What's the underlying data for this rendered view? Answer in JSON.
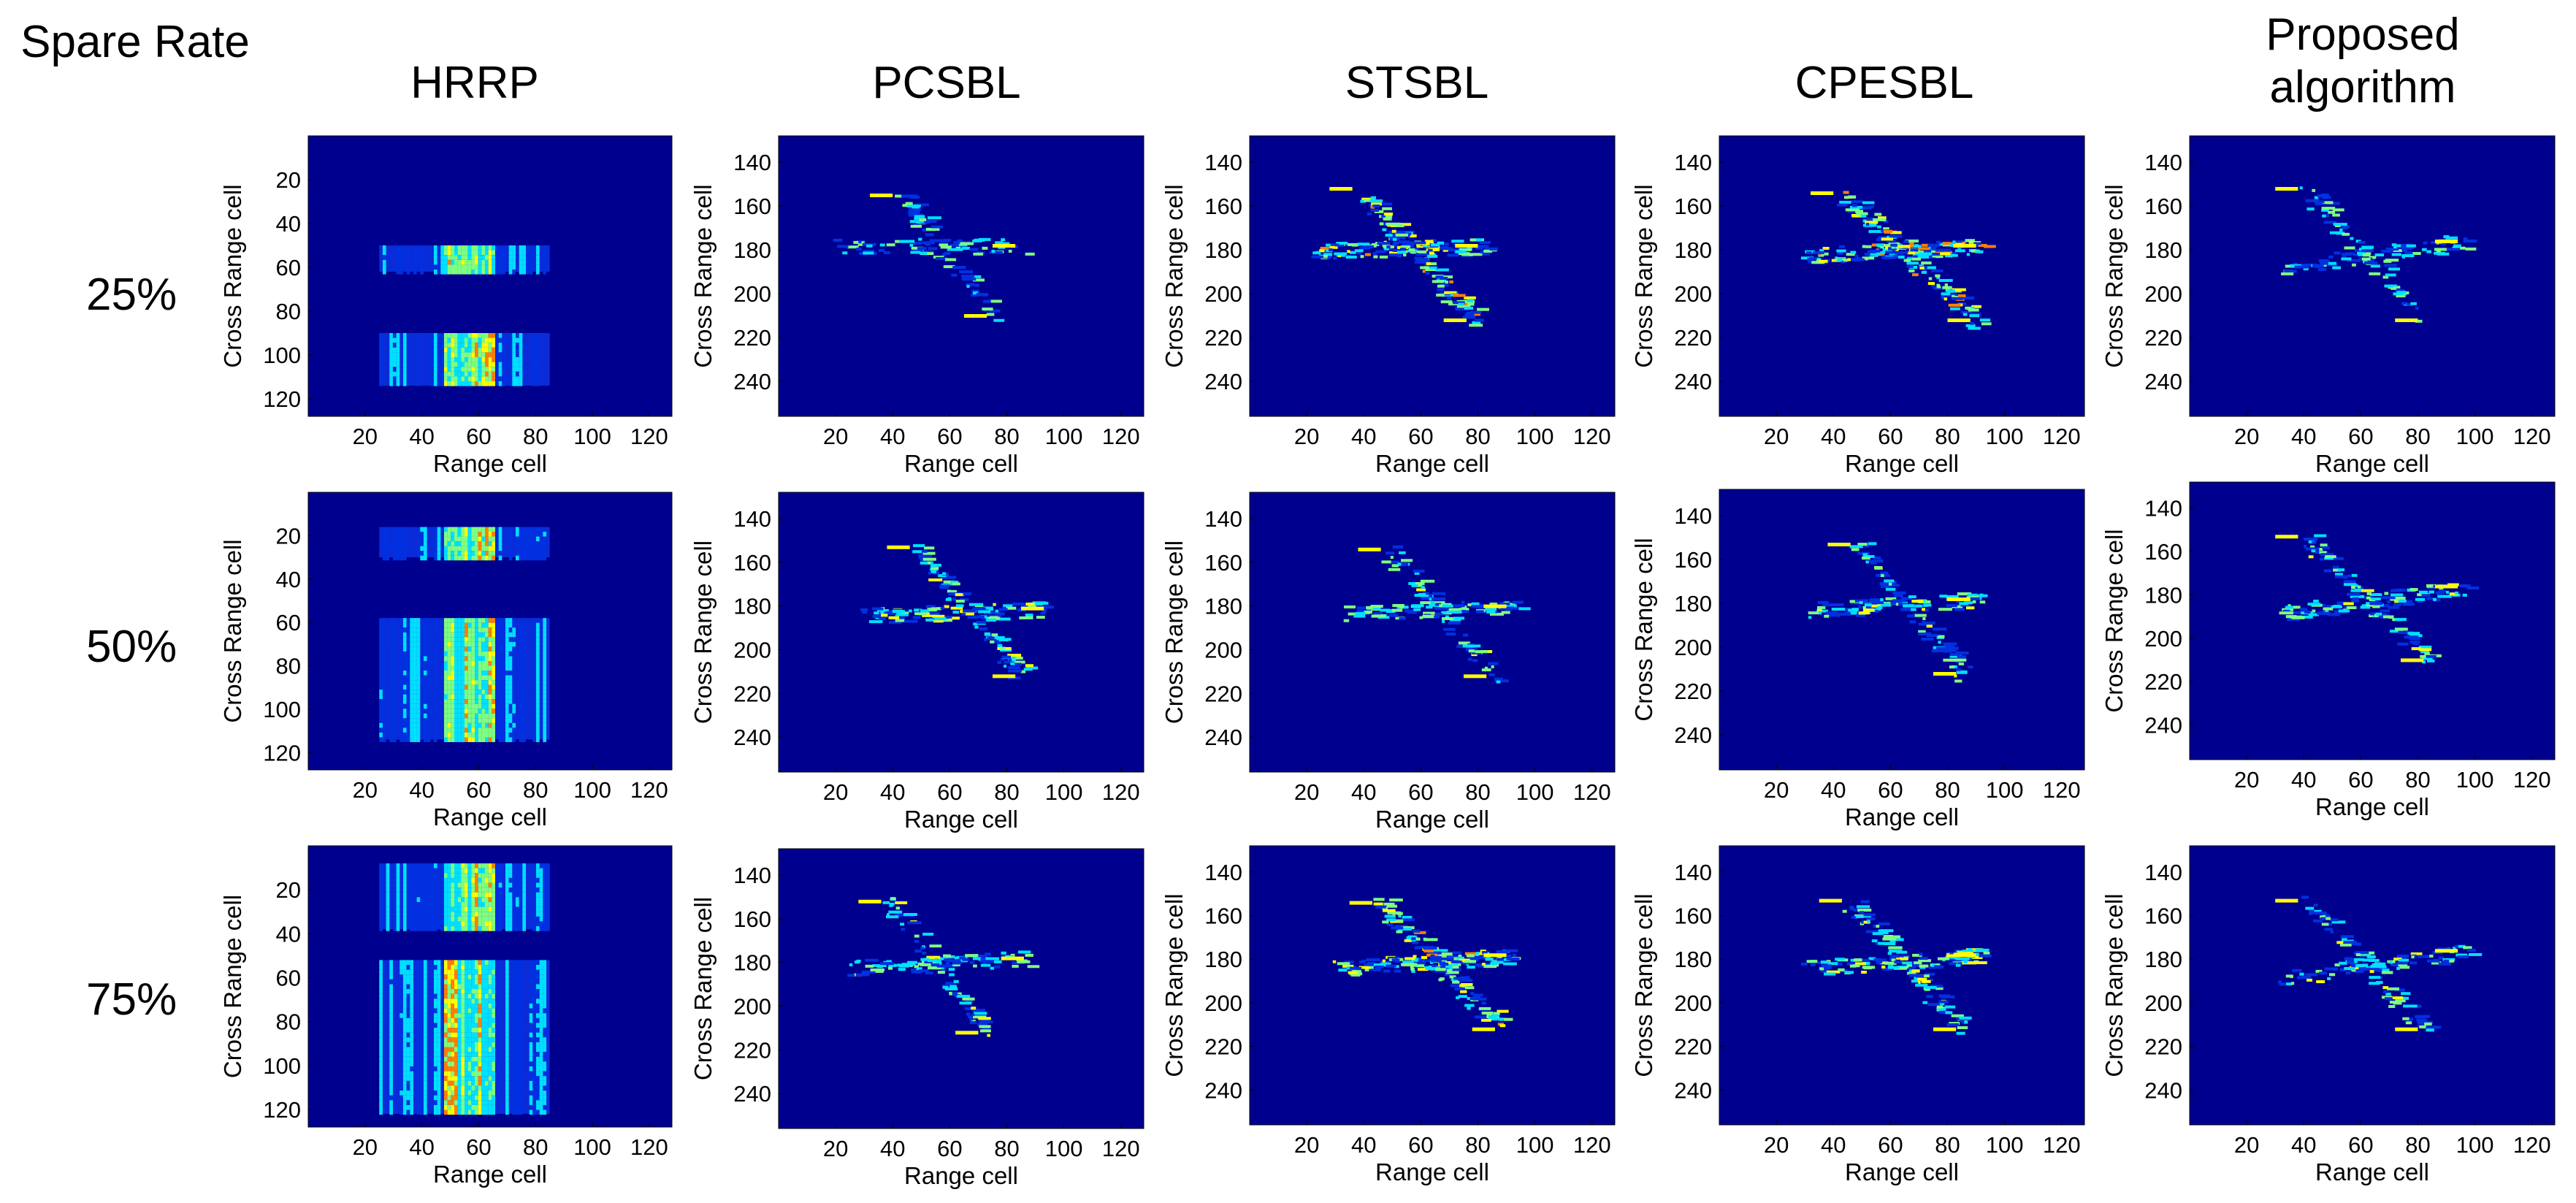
{
  "header": {
    "row_label_title": "Spare Rate",
    "columns": [
      "HRRP",
      "PCSBL",
      "STSBL",
      "CPESBL",
      "Proposed\nalgorithm"
    ]
  },
  "rows": [
    "25%",
    "50%",
    "75%"
  ],
  "colors": {
    "background": "#00008f",
    "low": "#0030e0",
    "mid": "#00e0ff",
    "high": "#ffff00",
    "peak": "#ff8000"
  },
  "chart_data": [
    {
      "type": "heatmap",
      "panel": "HRRP 25%",
      "title": "HRRP",
      "xlabel": "Range cell",
      "ylabel": "Cross Range cell",
      "xticks": [
        20,
        40,
        60,
        80,
        100,
        120
      ],
      "yticks": [
        20,
        40,
        60,
        80,
        100,
        120
      ],
      "xlim": [
        0,
        128
      ],
      "ylim": [
        128,
        0
      ],
      "bands": [
        [
          50,
          62
        ],
        [
          90,
          114
        ]
      ],
      "x_extent": [
        25,
        85
      ],
      "hot_x": [
        47,
        65
      ]
    },
    {
      "type": "heatmap",
      "panel": "PCSBL 25%",
      "title": "PCSBL",
      "xlabel": "Range cell",
      "ylabel": "Cross Range cell",
      "xticks": [
        20,
        40,
        60,
        80,
        100,
        120
      ],
      "yticks": [
        140,
        160,
        180,
        200,
        220,
        240
      ],
      "xlim": [
        0,
        128
      ],
      "ylim": [
        256,
        128
      ],
      "target": {
        "nose": [
          85,
          178
        ],
        "tail": [
          22,
          178
        ],
        "wing_tip_upper": [
          42,
          155
        ],
        "wing_tip_lower": [
          75,
          210
        ],
        "density": 0.5
      }
    },
    {
      "type": "heatmap",
      "panel": "STSBL 25%",
      "title": "STSBL",
      "xlabel": "Range cell",
      "ylabel": "Cross Range cell",
      "xticks": [
        20,
        40,
        60,
        80,
        100,
        120
      ],
      "yticks": [
        140,
        160,
        180,
        200,
        220,
        240
      ],
      "xlim": [
        0,
        128
      ],
      "ylim": [
        256,
        128
      ],
      "target": {
        "nose": [
          82,
          178
        ],
        "tail": [
          22,
          180
        ],
        "wing_tip_upper": [
          38,
          152
        ],
        "wing_tip_lower": [
          78,
          212
        ],
        "density": 0.9
      }
    },
    {
      "type": "heatmap",
      "panel": "CPESBL 25%",
      "title": "CPESBL",
      "xlabel": "Range cell",
      "ylabel": "Cross Range cell",
      "xticks": [
        20,
        40,
        60,
        80,
        100,
        120
      ],
      "yticks": [
        140,
        160,
        180,
        200,
        220,
        240
      ],
      "xlim": [
        0,
        128
      ],
      "ylim": [
        256,
        128
      ],
      "target": {
        "nose": [
          92,
          178
        ],
        "tail": [
          30,
          182
        ],
        "wing_tip_upper": [
          42,
          154
        ],
        "wing_tip_lower": [
          90,
          212
        ],
        "density": 1.0
      }
    },
    {
      "type": "heatmap",
      "panel": "Proposed algorithm 25%",
      "title": "Proposed algorithm",
      "xlabel": "Range cell",
      "ylabel": "Cross Range cell",
      "xticks": [
        20,
        40,
        60,
        80,
        100,
        120
      ],
      "yticks": [
        140,
        160,
        180,
        200,
        220,
        240
      ],
      "xlim": [
        0,
        128
      ],
      "ylim": [
        256,
        128
      ],
      "target": {
        "nose": [
          96,
          176
        ],
        "tail": [
          32,
          188
        ],
        "wing_tip_upper": [
          40,
          152
        ],
        "wing_tip_lower": [
          82,
          212
        ],
        "density": 0.55
      }
    },
    {
      "type": "heatmap",
      "panel": "HRRP 50%",
      "title": "HRRP",
      "xlabel": "Range cell",
      "ylabel": "Cross Range cell",
      "xticks": [
        20,
        40,
        60,
        80,
        100,
        120
      ],
      "yticks": [
        20,
        40,
        60,
        80,
        100,
        120
      ],
      "xlim": [
        0,
        128
      ],
      "ylim": [
        128,
        0
      ],
      "bands": [
        [
          16,
          30
        ],
        [
          58,
          114
        ]
      ],
      "x_extent": [
        25,
        85
      ],
      "hot_x": [
        47,
        65
      ]
    },
    {
      "type": "heatmap",
      "panel": "PCSBL 50%",
      "title": "PCSBL",
      "xlabel": "Range cell",
      "ylabel": "Cross Range cell",
      "xticks": [
        20,
        40,
        60,
        80,
        100,
        120
      ],
      "yticks": [
        140,
        160,
        180,
        200,
        220,
        240
      ],
      "xlim": [
        0,
        128
      ],
      "ylim": [
        256,
        128
      ],
      "target": {
        "nose": [
          95,
          181
        ],
        "tail": [
          30,
          184
        ],
        "wing_tip_upper": [
          48,
          153
        ],
        "wing_tip_lower": [
          85,
          212
        ],
        "density": 0.8
      }
    },
    {
      "type": "heatmap",
      "panel": "STSBL 50%",
      "title": "STSBL",
      "xlabel": "Range cell",
      "ylabel": "Cross Range cell",
      "xticks": [
        20,
        40,
        60,
        80,
        100,
        120
      ],
      "yticks": [
        140,
        160,
        180,
        200,
        220,
        240
      ],
      "xlim": [
        0,
        128
      ],
      "ylim": [
        256,
        128
      ],
      "target": {
        "nose": [
          92,
          180
        ],
        "tail": [
          32,
          183
        ],
        "wing_tip_upper": [
          48,
          154
        ],
        "wing_tip_lower": [
          85,
          212
        ],
        "density": 0.6
      }
    },
    {
      "type": "heatmap",
      "panel": "CPESBL 50%",
      "title": "CPESBL",
      "xlabel": "Range cell",
      "ylabel": "Cross Range cell",
      "xticks": [
        20,
        40,
        60,
        80,
        100,
        120
      ],
      "yticks": [
        140,
        160,
        180,
        200,
        220,
        240
      ],
      "xlim": [
        0,
        128
      ],
      "ylim": [
        256,
        128
      ],
      "target": {
        "nose": [
          90,
          178
        ],
        "tail": [
          30,
          183
        ],
        "wing_tip_upper": [
          48,
          153
        ],
        "wing_tip_lower": [
          85,
          212
        ],
        "density": 0.65
      }
    },
    {
      "type": "heatmap",
      "panel": "Proposed algorithm 50%",
      "title": "Proposed algorithm",
      "xlabel": "Range cell",
      "ylabel": "Cross Range cell",
      "xticks": [
        20,
        40,
        60,
        80,
        100,
        120
      ],
      "yticks": [
        140,
        160,
        180,
        200,
        220,
        240
      ],
      "xlim": [
        0,
        128
      ],
      "ylim": [
        256,
        128
      ],
      "target": {
        "nose": [
          96,
          176
        ],
        "tail": [
          32,
          188
        ],
        "wing_tip_upper": [
          40,
          153
        ],
        "wing_tip_lower": [
          84,
          210
        ],
        "density": 0.7
      }
    },
    {
      "type": "heatmap",
      "panel": "HRRP 75%",
      "title": "HRRP",
      "xlabel": "Range cell",
      "ylabel": "Cross Range cell",
      "xticks": [
        20,
        40,
        60,
        80,
        100,
        120
      ],
      "yticks": [
        20,
        40,
        60,
        80,
        100,
        120
      ],
      "xlim": [
        0,
        128
      ],
      "ylim": [
        128,
        0
      ],
      "bands": [
        [
          8,
          38
        ],
        [
          52,
          122
        ]
      ],
      "x_extent": [
        25,
        85
      ],
      "hot_x": [
        47,
        65
      ]
    },
    {
      "type": "heatmap",
      "panel": "PCSBL 75%",
      "title": "PCSBL",
      "xlabel": "Range cell",
      "ylabel": "Cross Range cell",
      "xticks": [
        20,
        40,
        60,
        80,
        100,
        120
      ],
      "yticks": [
        140,
        160,
        180,
        200,
        220,
        240
      ],
      "xlim": [
        0,
        128
      ],
      "ylim": [
        256,
        128
      ],
      "target": {
        "nose": [
          88,
          178
        ],
        "tail": [
          22,
          182
        ],
        "wing_tip_upper": [
          38,
          152
        ],
        "wing_tip_lower": [
          72,
          212
        ],
        "density": 0.6
      }
    },
    {
      "type": "heatmap",
      "panel": "STSBL 75%",
      "title": "STSBL",
      "xlabel": "Range cell",
      "ylabel": "Cross Range cell",
      "xticks": [
        20,
        40,
        60,
        80,
        100,
        120
      ],
      "yticks": [
        140,
        160,
        180,
        200,
        220,
        240
      ],
      "xlim": [
        0,
        128
      ],
      "ylim": [
        256,
        128
      ],
      "target": {
        "nose": [
          92,
          178
        ],
        "tail": [
          30,
          184
        ],
        "wing_tip_upper": [
          45,
          154
        ],
        "wing_tip_lower": [
          88,
          212
        ],
        "density": 0.95
      }
    },
    {
      "type": "heatmap",
      "panel": "CPESBL 75%",
      "title": "CPESBL",
      "xlabel": "Range cell",
      "ylabel": "Cross Range cell",
      "xticks": [
        20,
        40,
        60,
        80,
        100,
        120
      ],
      "yticks": [
        140,
        160,
        180,
        200,
        220,
        240
      ],
      "xlim": [
        0,
        128
      ],
      "ylim": [
        256,
        128
      ],
      "target": {
        "nose": [
          92,
          178
        ],
        "tail": [
          30,
          184
        ],
        "wing_tip_upper": [
          45,
          153
        ],
        "wing_tip_lower": [
          85,
          212
        ],
        "density": 0.8
      }
    },
    {
      "type": "heatmap",
      "panel": "Proposed algorithm 75%",
      "title": "Proposed algorithm",
      "xlabel": "Range cell",
      "ylabel": "Cross Range cell",
      "xticks": [
        20,
        40,
        60,
        80,
        100,
        120
      ],
      "yticks": [
        140,
        160,
        180,
        200,
        220,
        240
      ],
      "xlim": [
        0,
        128
      ],
      "ylim": [
        256,
        128
      ],
      "target": {
        "nose": [
          96,
          176
        ],
        "tail": [
          32,
          188
        ],
        "wing_tip_upper": [
          40,
          153
        ],
        "wing_tip_lower": [
          82,
          212
        ],
        "density": 0.65
      }
    }
  ]
}
